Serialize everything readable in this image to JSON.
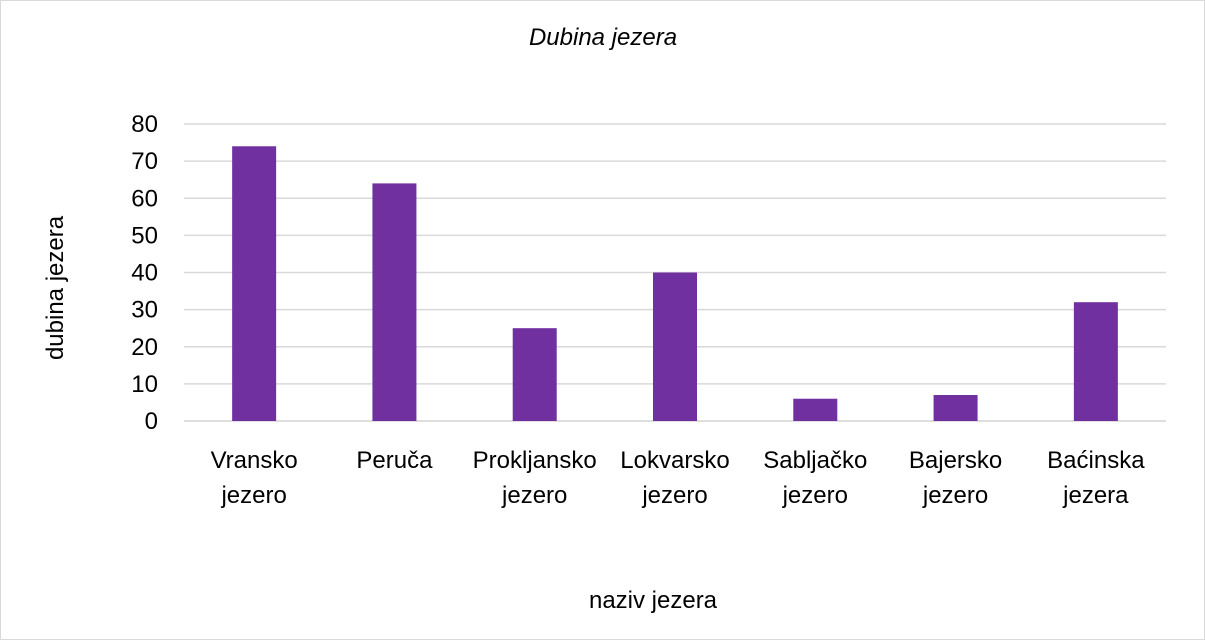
{
  "chart_data": {
    "type": "bar",
    "title": "Dubina jezera",
    "xlabel": "naziv jezera",
    "ylabel": "dubina jezera",
    "categories": [
      [
        "Vransko",
        "jezero"
      ],
      [
        "Peruča"
      ],
      [
        "Prokljansko",
        "jezero"
      ],
      [
        "Lokvarsko",
        "jezero"
      ],
      [
        "Sabljačko",
        "jezero"
      ],
      [
        "Bajersko",
        "jezero"
      ],
      [
        "Baćinska",
        "jezera"
      ]
    ],
    "values": [
      74,
      64,
      25,
      40,
      6,
      7,
      32
    ],
    "ylim": [
      0,
      80
    ],
    "yticks": [
      0,
      10,
      20,
      30,
      40,
      50,
      60,
      70,
      80
    ],
    "grid": true,
    "bar_color": "#7030a0",
    "grid_color": "#d9d9d9"
  }
}
